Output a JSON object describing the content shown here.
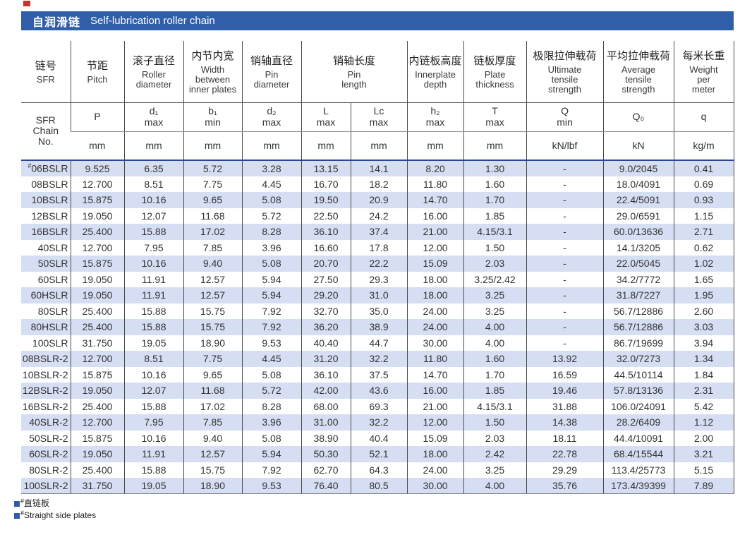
{
  "title_bar": {
    "zh": "自润滑链",
    "en": "Self-lubrication roller chain",
    "bg_color": "#305ea9"
  },
  "accents": {
    "red_marker_color": "#c8352a",
    "row_stripe_color": "#d6def3",
    "divider_navy": "#2a4597"
  },
  "table": {
    "header_row1": [
      {
        "zh": "链号",
        "en": "SFR"
      },
      {
        "zh": "节距",
        "en": "Pitch"
      },
      {
        "zh": "滚子直径",
        "en": "Roller\ndiameter"
      },
      {
        "zh": "内节内宽",
        "en": "Width\nbetween\ninner plates"
      },
      {
        "zh": "销轴直径",
        "en": "Pin\ndiameter"
      },
      {
        "zh": "销轴长度",
        "en": "Pin\nlength"
      },
      {
        "zh": "内链板高度",
        "en": "Innerplate\ndepth"
      },
      {
        "zh": "链板厚度",
        "en": "Plate\nthickness"
      },
      {
        "zh": "极限拉伸载荷",
        "en": "Ultimate\ntensile\nstrength"
      },
      {
        "zh": "平均拉伸载荷",
        "en": "Average\ntensile\nstrength"
      },
      {
        "zh": "每米长重",
        "en": "Weight\nper\nmeter"
      }
    ],
    "corner": "SFR\nChain\nNo.",
    "symbols": [
      "P",
      "d₁\nmax",
      "b₁\nmin",
      "d₂\nmax",
      "L\nmax",
      "Lc\nmax",
      "h₂\nmax",
      "T\nmax",
      "Q\nmin",
      "Q₀",
      "q"
    ],
    "units": [
      "mm",
      "mm",
      "mm",
      "mm",
      "mm",
      "mm",
      "mm",
      "mm",
      "kN/lbf",
      "kN",
      "kg/m"
    ],
    "rows": [
      [
        "#06BSLR",
        "9.525",
        "6.35",
        "5.72",
        "3.28",
        "13.15",
        "14.1",
        "8.20",
        "1.30",
        "-",
        "9.0/2045",
        "0.41"
      ],
      [
        "08BSLR",
        "12.700",
        "8.51",
        "7.75",
        "4.45",
        "16.70",
        "18.2",
        "11.80",
        "1.60",
        "-",
        "18.0/4091",
        "0.69"
      ],
      [
        "10BSLR",
        "15.875",
        "10.16",
        "9.65",
        "5.08",
        "19.50",
        "20.9",
        "14.70",
        "1.70",
        "-",
        "22.4/5091",
        "0.93"
      ],
      [
        "12BSLR",
        "19.050",
        "12.07",
        "11.68",
        "5.72",
        "22.50",
        "24.2",
        "16.00",
        "1.85",
        "-",
        "29.0/6591",
        "1.15"
      ],
      [
        "16BSLR",
        "25.400",
        "15.88",
        "17.02",
        "8.28",
        "36.10",
        "37.4",
        "21.00",
        "4.15/3.1",
        "-",
        "60.0/13636",
        "2.71"
      ],
      [
        "40SLR",
        "12.700",
        "7.95",
        "7.85",
        "3.96",
        "16.60",
        "17.8",
        "12.00",
        "1.50",
        "-",
        "14.1/3205",
        "0.62"
      ],
      [
        "50SLR",
        "15.875",
        "10.16",
        "9.40",
        "5.08",
        "20.70",
        "22.2",
        "15.09",
        "2.03",
        "-",
        "22.0/5045",
        "1.02"
      ],
      [
        "60SLR",
        "19.050",
        "11.91",
        "12.57",
        "5.94",
        "27.50",
        "29.3",
        "18.00",
        "3.25/2.42",
        "-",
        "34.2/7772",
        "1.65"
      ],
      [
        "60HSLR",
        "19.050",
        "11.91",
        "12.57",
        "5.94",
        "29.20",
        "31.0",
        "18.00",
        "3.25",
        "-",
        "31.8/7227",
        "1.95"
      ],
      [
        "80SLR",
        "25.400",
        "15.88",
        "15.75",
        "7.92",
        "32.70",
        "35.0",
        "24.00",
        "3.25",
        "-",
        "56.7/12886",
        "2.60"
      ],
      [
        "80HSLR",
        "25.400",
        "15.88",
        "15.75",
        "7.92",
        "36.20",
        "38.9",
        "24.00",
        "4.00",
        "-",
        "56.7/12886",
        "3.03"
      ],
      [
        "100SLR",
        "31.750",
        "19.05",
        "18.90",
        "9.53",
        "40.40",
        "44.7",
        "30.00",
        "4.00",
        "-",
        "86.7/19699",
        "3.94"
      ],
      [
        "08BSLR-2",
        "12.700",
        "8.51",
        "7.75",
        "4.45",
        "31.20",
        "32.2",
        "11.80",
        "1.60",
        "13.92",
        "32.0/7273",
        "1.34"
      ],
      [
        "10BSLR-2",
        "15.875",
        "10.16",
        "9.65",
        "5.08",
        "36.10",
        "37.5",
        "14.70",
        "1.70",
        "16.59",
        "44.5/10114",
        "1.84"
      ],
      [
        "12BSLR-2",
        "19.050",
        "12.07",
        "11.68",
        "5.72",
        "42.00",
        "43.6",
        "16.00",
        "1.85",
        "19.46",
        "57.8/13136",
        "2.31"
      ],
      [
        "16BSLR-2",
        "25.400",
        "15.88",
        "17.02",
        "8.28",
        "68.00",
        "69.3",
        "21.00",
        "4.15/3.1",
        "31.88",
        "106.0/24091",
        "5.42"
      ],
      [
        "40SLR-2",
        "12.700",
        "7.95",
        "7.85",
        "3.96",
        "31.00",
        "32.2",
        "12.00",
        "1.50",
        "14.38",
        "28.2/6409",
        "1.12"
      ],
      [
        "50SLR-2",
        "15.875",
        "10.16",
        "9.40",
        "5.08",
        "38.90",
        "40.4",
        "15.09",
        "2.03",
        "18.11",
        "44.4/10091",
        "2.00"
      ],
      [
        "60SLR-2",
        "19.050",
        "11.91",
        "12.57",
        "5.94",
        "50.30",
        "52.1",
        "18.00",
        "2.42",
        "22.78",
        "68.4/15544",
        "3.21"
      ],
      [
        "80SLR-2",
        "25.400",
        "15.88",
        "15.75",
        "7.92",
        "62.70",
        "64.3",
        "24.00",
        "3.25",
        "29.29",
        "113.4/25773",
        "5.15"
      ],
      [
        "100SLR-2",
        "31.750",
        "19.05",
        "18.90",
        "9.53",
        "76.40",
        "80.5",
        "30.00",
        "4.00",
        "35.76",
        "173.4/39399",
        "7.89"
      ]
    ]
  },
  "footnotes": [
    {
      "mark": "#",
      "text": "直链板"
    },
    {
      "mark": "#",
      "text": "Straight side plates"
    }
  ]
}
